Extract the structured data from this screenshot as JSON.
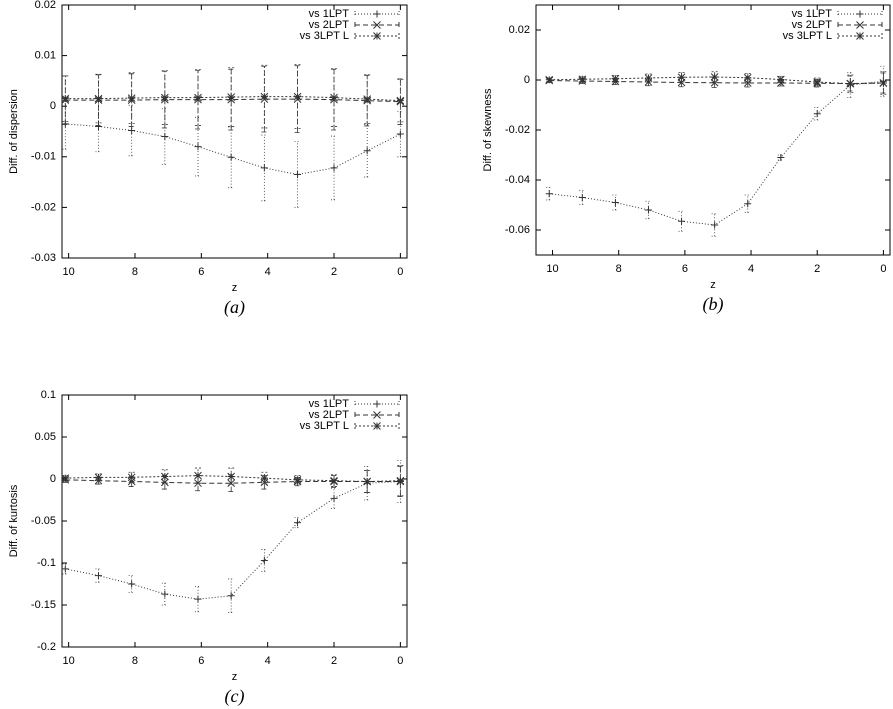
{
  "chart_data": [
    {
      "type": "line",
      "ylabel": "Diff. of dispersion",
      "xlabel": "z",
      "caption": "(a)",
      "x": [
        10.1,
        9.1,
        8.1,
        7.1,
        6.1,
        5.1,
        4.1,
        3.1,
        2.0,
        1.0,
        0.0
      ],
      "xlim": [
        10.2,
        -0.2
      ],
      "xticks": [
        10,
        8,
        6,
        4,
        2,
        0
      ],
      "ylim": [
        -0.03,
        0.02
      ],
      "yticks": [
        0.02,
        0.01,
        0,
        -0.01,
        -0.02,
        -0.03
      ],
      "legend": "upper right",
      "series": [
        {
          "name": "vs 1LPT",
          "color": "#333333",
          "dash": "1,2",
          "marker": "plus",
          "values": [
            -0.0035,
            -0.004,
            -0.0048,
            -0.006,
            -0.008,
            -0.0101,
            -0.0122,
            -0.0135,
            -0.0122,
            -0.0088,
            -0.0055
          ],
          "errors": [
            0.005,
            0.005,
            0.005,
            0.0055,
            0.0058,
            0.006,
            0.0065,
            0.0065,
            0.0063,
            0.0052,
            0.0045
          ]
        },
        {
          "name": "vs 2LPT",
          "color": "#333333",
          "dash": "5,3",
          "marker": "cross",
          "values": [
            0.0012,
            0.0012,
            0.0012,
            0.0013,
            0.0013,
            0.0013,
            0.0014,
            0.0014,
            0.0013,
            0.0011,
            0.0009
          ],
          "errors": [
            0.0048,
            0.005,
            0.0052,
            0.0056,
            0.0058,
            0.006,
            0.0065,
            0.0066,
            0.006,
            0.005,
            0.0045
          ]
        },
        {
          "name": "vs 3LPT L",
          "color": "#333333",
          "dash": "2,2",
          "marker": "star",
          "values": [
            0.0015,
            0.0015,
            0.0016,
            0.0017,
            0.0017,
            0.0018,
            0.0019,
            0.0019,
            0.0017,
            0.0014,
            0.0011
          ],
          "errors": [
            0.0045,
            0.0048,
            0.005,
            0.0053,
            0.0055,
            0.0058,
            0.0062,
            0.0063,
            0.0057,
            0.0048,
            0.0042
          ]
        }
      ]
    },
    {
      "type": "line",
      "ylabel": "Diff. of skewness",
      "xlabel": "z",
      "caption": "(b)",
      "x": [
        10.1,
        9.1,
        8.1,
        7.1,
        6.1,
        5.1,
        4.1,
        3.1,
        2.0,
        1.0,
        0.0
      ],
      "xlim": [
        10.5,
        -0.2
      ],
      "xticks": [
        10,
        8,
        6,
        4,
        2,
        0
      ],
      "ylim": [
        -0.07,
        0.03
      ],
      "yticks": [
        0.02,
        0,
        -0.02,
        -0.04,
        -0.06
      ],
      "legend": "upper right",
      "series": [
        {
          "name": "vs 1LPT",
          "color": "#333333",
          "dash": "1,2",
          "marker": "plus",
          "values": [
            -0.0455,
            -0.047,
            -0.049,
            -0.052,
            -0.0565,
            -0.058,
            -0.0495,
            -0.031,
            -0.0135,
            -0.002,
            -0.0005
          ],
          "errors": [
            0.0025,
            0.0028,
            0.003,
            0.0035,
            0.004,
            0.0045,
            0.0035,
            0.001,
            0.0025,
            0.005,
            0.006
          ]
        },
        {
          "name": "vs 2LPT",
          "color": "#333333",
          "dash": "5,3",
          "marker": "cross",
          "values": [
            -0.0002,
            -0.0004,
            -0.0006,
            -0.0008,
            -0.001,
            -0.0011,
            -0.0012,
            -0.0012,
            -0.0013,
            -0.0014,
            -0.0012
          ],
          "errors": [
            0.0008,
            0.001,
            0.0012,
            0.0015,
            0.0017,
            0.0019,
            0.0016,
            0.0012,
            0.0015,
            0.003,
            0.004
          ]
        },
        {
          "name": "vs 3LPT L",
          "color": "#333333",
          "dash": "2,2",
          "marker": "star",
          "values": [
            0.0001,
            0.0003,
            0.0005,
            0.0008,
            0.0011,
            0.0012,
            0.0009,
            0.0002,
            -0.0008,
            -0.0015,
            -0.0012
          ],
          "errors": [
            0.0008,
            0.001,
            0.0013,
            0.0016,
            0.0019,
            0.0021,
            0.0017,
            0.0012,
            0.0016,
            0.0035,
            0.0045
          ]
        }
      ]
    },
    {
      "type": "line",
      "ylabel": "Diff. of kurtosis",
      "xlabel": "z",
      "caption": "(c)",
      "x": [
        10.1,
        9.1,
        8.1,
        7.1,
        6.1,
        5.1,
        4.1,
        3.1,
        2.0,
        1.0,
        0.0
      ],
      "xlim": [
        10.2,
        -0.2
      ],
      "xticks": [
        10,
        8,
        6,
        4,
        2,
        0
      ],
      "ylim": [
        -0.2,
        0.1
      ],
      "yticks": [
        0.1,
        0.05,
        0,
        -0.05,
        -0.1,
        -0.15,
        -0.2
      ],
      "legend": "upper right",
      "series": [
        {
          "name": "vs 1LPT",
          "color": "#333333",
          "dash": "1,2",
          "marker": "plus",
          "values": [
            -0.107,
            -0.115,
            -0.125,
            -0.137,
            -0.143,
            -0.139,
            -0.097,
            -0.052,
            -0.023,
            -0.005,
            -0.003
          ],
          "errors": [
            0.006,
            0.008,
            0.01,
            0.013,
            0.015,
            0.02,
            0.013,
            0.006,
            0.012,
            0.02,
            0.025
          ]
        },
        {
          "name": "vs 2LPT",
          "color": "#333333",
          "dash": "5,3",
          "marker": "cross",
          "values": [
            -0.001,
            -0.002,
            -0.003,
            -0.004,
            -0.005,
            -0.005,
            -0.004,
            -0.003,
            -0.003,
            -0.003,
            -0.003
          ],
          "errors": [
            0.003,
            0.004,
            0.006,
            0.008,
            0.009,
            0.01,
            0.008,
            0.005,
            0.007,
            0.013,
            0.018
          ]
        },
        {
          "name": "vs 3LPT L",
          "color": "#333333",
          "dash": "2,2",
          "marker": "star",
          "values": [
            0.001,
            0.002,
            0.002,
            0.003,
            0.004,
            0.003,
            0.001,
            -0.001,
            -0.002,
            -0.003,
            -0.002
          ],
          "errors": [
            0.003,
            0.004,
            0.006,
            0.008,
            0.009,
            0.01,
            0.007,
            0.005,
            0.007,
            0.013,
            0.018
          ]
        }
      ]
    }
  ]
}
